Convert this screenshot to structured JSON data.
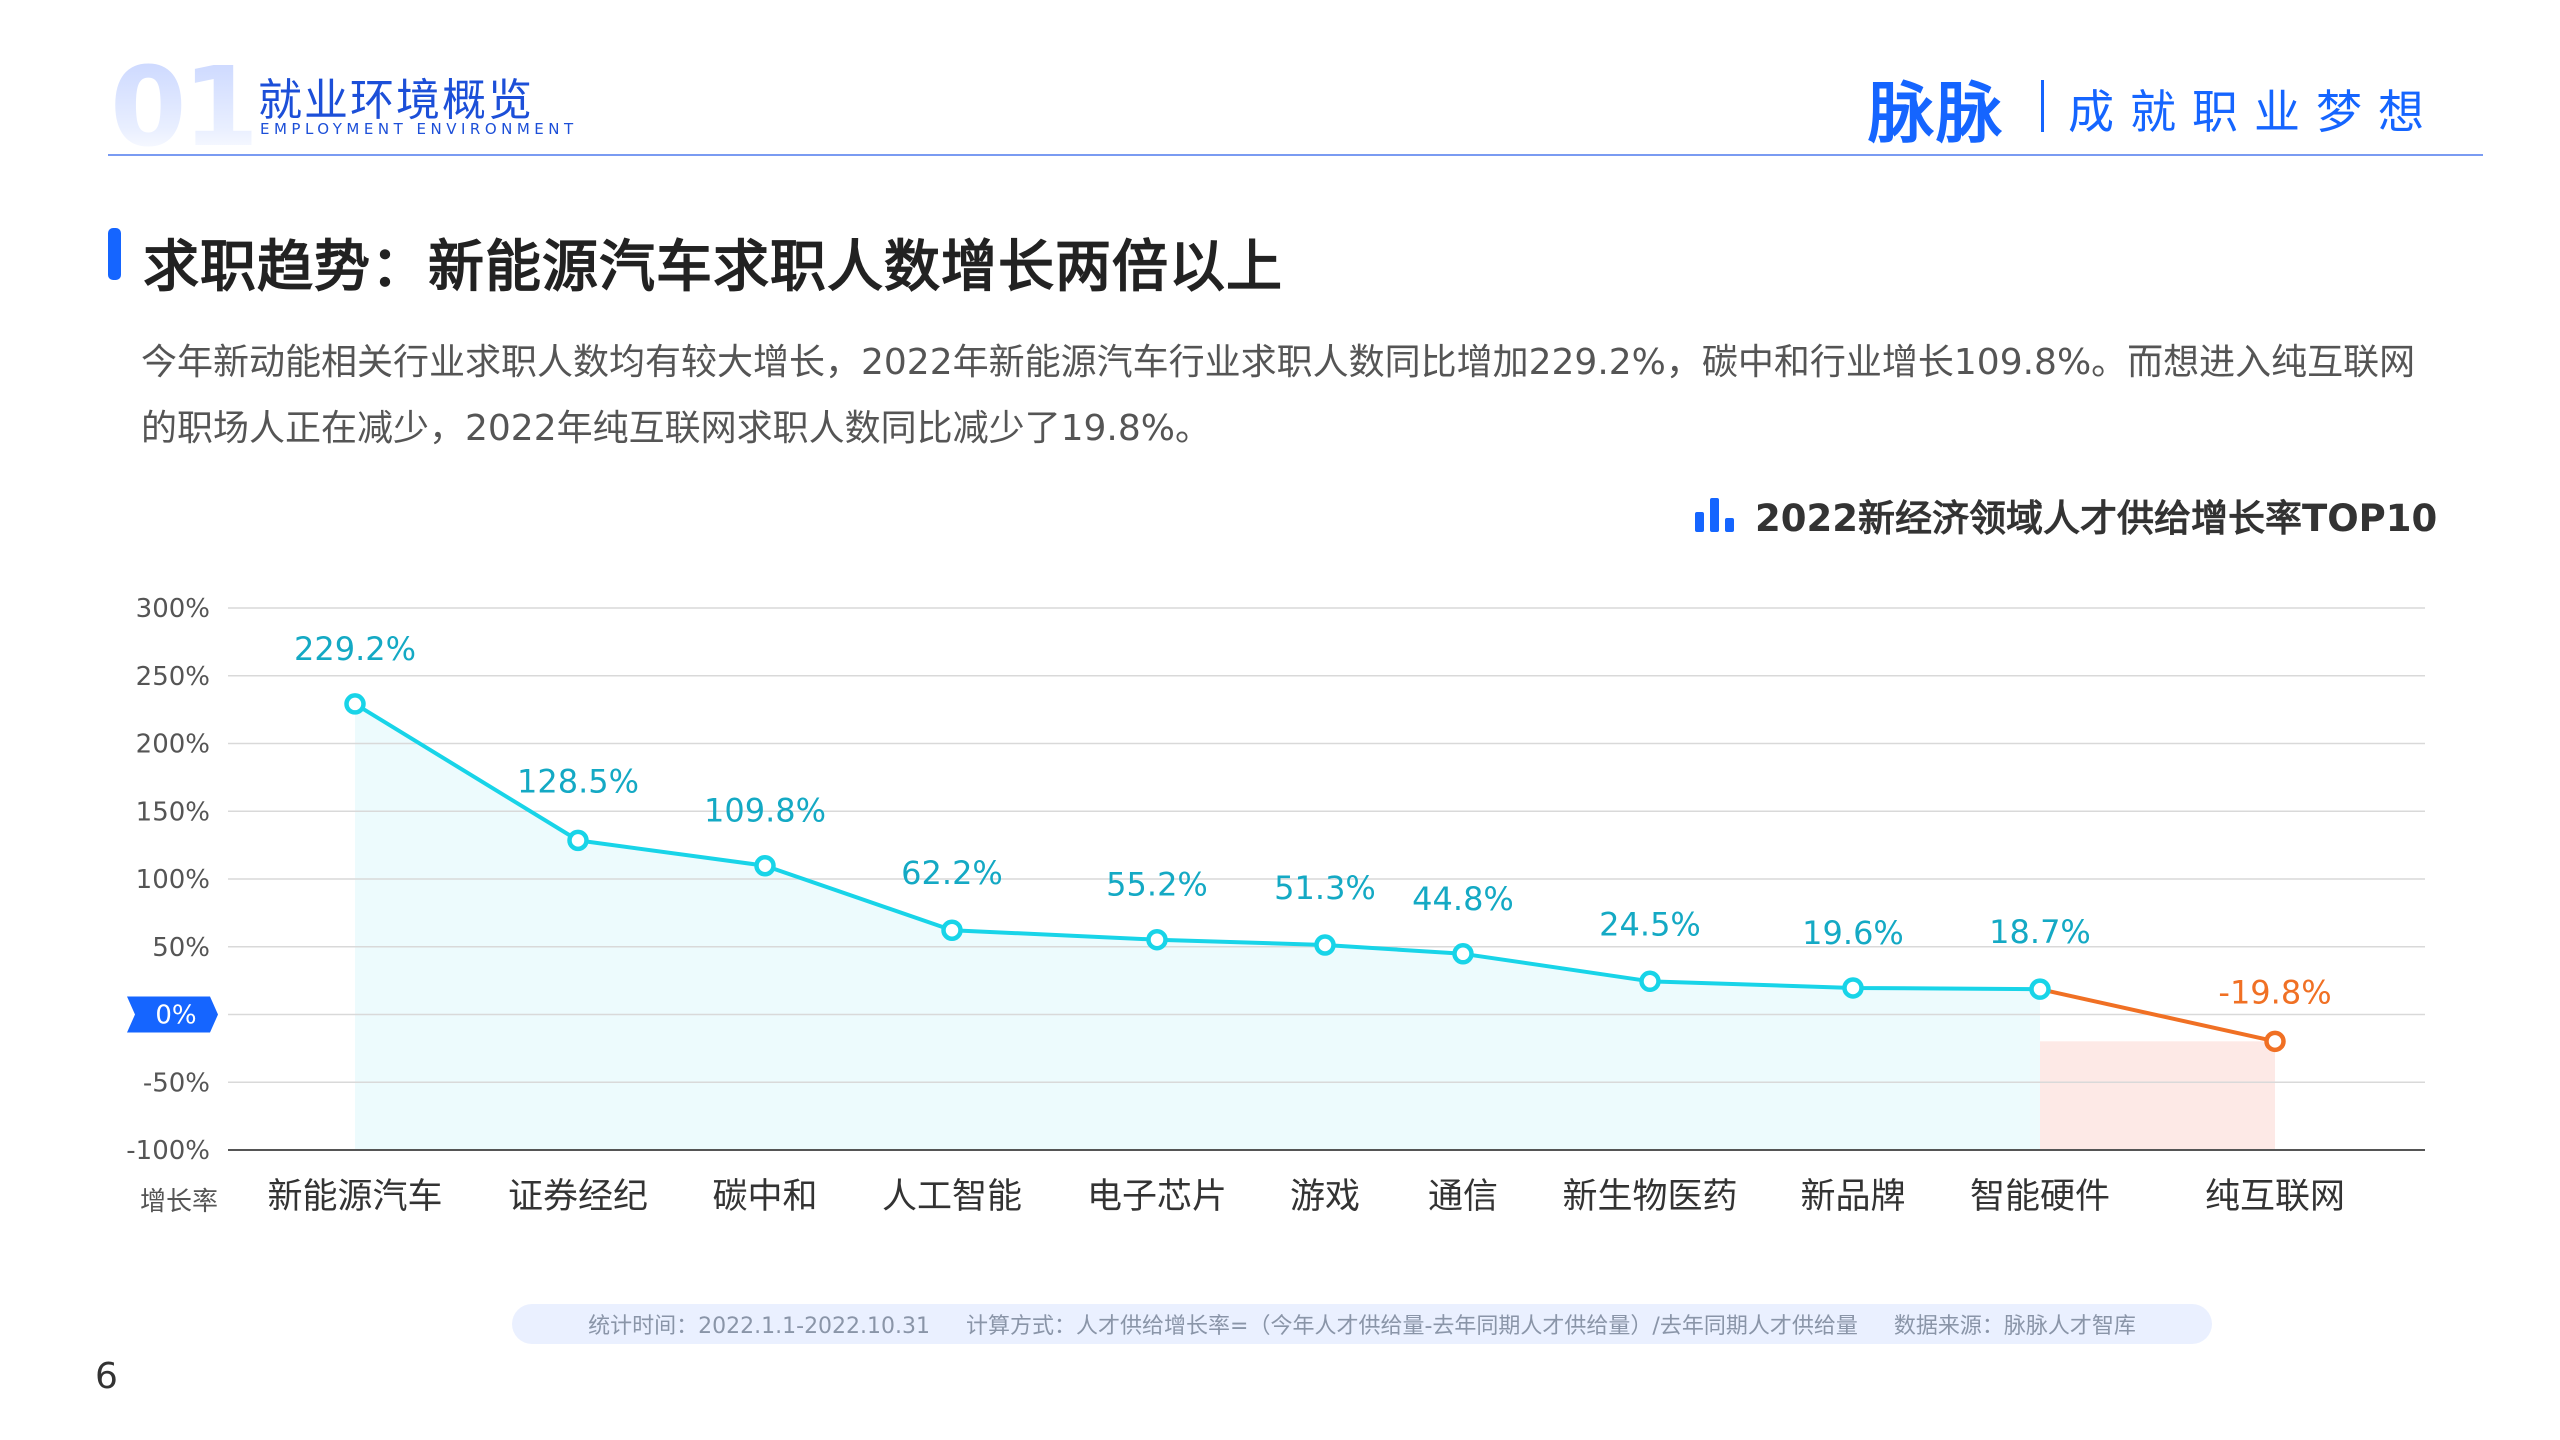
{
  "header": {
    "section_number": "01",
    "section_title": "就业环境概览",
    "section_subtitle": "EMPLOYMENT ENVIRONMENT",
    "brand": "脉脉",
    "slogan": "成就职业梦想"
  },
  "headline": "求职趋势：新能源汽车求职人数增长两倍以上",
  "description": "今年新动能相关行业求职人数均有较大增长，2022年新能源汽车行业求职人数同比增加229.2%，碳中和行业增长109.8%。而想进入纯互联网的职场人正在减少，2022年纯互联网求职人数同比减少了19.8%。",
  "chart_data": {
    "type": "line",
    "title": "2022新经济领域人才供给增长率TOP10",
    "xlabel": "增长率",
    "categories": [
      "新能源汽车",
      "证券经纪",
      "碳中和",
      "人工智能",
      "电子芯片",
      "游戏",
      "通信",
      "新生物医药",
      "新品牌",
      "智能硬件",
      "纯互联网"
    ],
    "values": [
      229.2,
      128.5,
      109.8,
      62.2,
      55.2,
      51.3,
      44.8,
      24.5,
      19.6,
      18.7,
      -19.8
    ],
    "value_labels": [
      "229.2%",
      "128.5%",
      "109.8%",
      "62.2%",
      "55.2%",
      "51.3%",
      "44.8%",
      "24.5%",
      "19.6%",
      "18.7%",
      "-19.8%"
    ],
    "y_ticks": [
      300,
      250,
      200,
      150,
      100,
      50,
      0,
      -50,
      -100
    ],
    "y_tick_labels": [
      "300%",
      "250%",
      "200%",
      "150%",
      "100%",
      "50%",
      "0%",
      "-50%",
      "-100%"
    ],
    "ylim": [
      -100,
      300
    ],
    "grid": true,
    "legend": "none",
    "colors": {
      "positive": "#18d4e8",
      "positive_label": "#14a9c4",
      "negative": "#f07024",
      "positive_fill": "#edfbfd",
      "negative_fill": "#fde9e6",
      "zero_badge": "#1565ff"
    }
  },
  "footer": {
    "period": "统计时间：2022.1.1-2022.10.31",
    "method": "计算方式：人才供给增长率=（今年人才供给量-去年同期人才供给量）/去年同期人才供给量",
    "source": "数据来源：脉脉人才智库"
  },
  "page_number": "6"
}
